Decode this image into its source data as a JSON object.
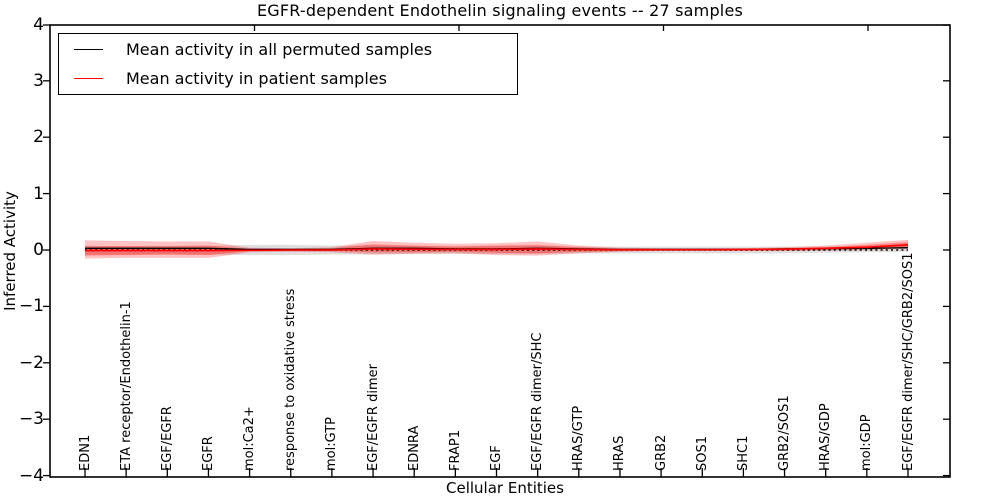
{
  "chart_data": {
    "type": "line",
    "title": "EGFR-dependent Endothelin signaling events -- 27 samples",
    "xlabel": "Cellular Entities",
    "ylabel": "Inferred Activity",
    "ylim": [
      -4,
      4
    ],
    "yticks": [
      4,
      3,
      2,
      1,
      0,
      -1,
      -2,
      -3,
      -4
    ],
    "grid": false,
    "legend_position": "upper-left",
    "categories": [
      "EDN1",
      "ETA receptor/Endothelin-1",
      "EGF/EGFR",
      "EGFR",
      "mol:Ca2+",
      "response to oxidative stress",
      "mol:GTP",
      "EGF/EGFR dimer",
      "EDNRA",
      "FRAP1",
      "EGF",
      "EGF/EGFR dimer/SHC",
      "HRAS/GTP",
      "HRAS",
      "GRB2",
      "SOS1",
      "SHC1",
      "GRB2/SOS1",
      "HRAS/GDP",
      "mol:GDP",
      "EGF/EGFR dimer/SHC/GRB2/SOS1"
    ],
    "series": [
      {
        "name": "Mean activity in all permuted samples",
        "color": "#000000",
        "values": [
          0.03,
          0.03,
          0.03,
          0.03,
          0.01,
          0.01,
          0.01,
          0.03,
          0.03,
          0.02,
          0.02,
          0.03,
          0.02,
          0.01,
          0.01,
          0.01,
          0.01,
          0.02,
          0.025,
          0.03,
          0.04
        ]
      },
      {
        "name": "Mean activity in patient samples",
        "color": "#ff0000",
        "values": [
          -0.01,
          -0.01,
          -0.01,
          -0.01,
          -0.005,
          0,
          0,
          0.02,
          0.015,
          0.01,
          0.01,
          0.02,
          0.01,
          0.005,
          0.005,
          0.005,
          0.01,
          0.015,
          0.03,
          0.05,
          0.09
        ]
      }
    ],
    "zero_line": {
      "value": 0,
      "style": "dotted",
      "color": "#000000"
    },
    "bands": [
      {
        "name": "permuted samples range",
        "color": "#808080",
        "opacity": 0.25,
        "top": [
          0.07,
          0.07,
          0.07,
          0.07,
          0.09,
          0.09,
          0.08,
          0.08,
          0.07,
          0.07,
          0.07,
          0.07,
          0.06,
          0.06,
          0.06,
          0.06,
          0.06,
          0.06,
          0.06,
          0.07,
          0.08
        ],
        "bottom": [
          -0.08,
          -0.08,
          -0.08,
          -0.08,
          -0.09,
          -0.09,
          -0.08,
          -0.08,
          -0.07,
          -0.07,
          -0.07,
          -0.07,
          -0.06,
          -0.06,
          -0.06,
          -0.06,
          -0.06,
          -0.06,
          -0.05,
          -0.04,
          -0.03
        ]
      },
      {
        "name": "patient samples range outer",
        "color": "#ff0000",
        "opacity": 0.24,
        "top": [
          0.17,
          0.16,
          0.15,
          0.15,
          0.04,
          0.03,
          0.05,
          0.16,
          0.13,
          0.11,
          0.12,
          0.15,
          0.08,
          0.04,
          0.03,
          0.03,
          0.03,
          0.05,
          0.08,
          0.13,
          0.18
        ],
        "bottom": [
          -0.15,
          -0.14,
          -0.14,
          -0.14,
          -0.04,
          -0.03,
          -0.04,
          -0.08,
          -0.07,
          -0.06,
          -0.09,
          -0.1,
          -0.06,
          -0.03,
          -0.02,
          -0.02,
          -0.02,
          -0.02,
          -0.01,
          0.0,
          0.02
        ]
      },
      {
        "name": "patient samples range inner",
        "color": "#ff0000",
        "opacity": 0.32,
        "top": [
          0.07,
          0.07,
          0.07,
          0.08,
          0.02,
          0.02,
          0.03,
          0.1,
          0.08,
          0.06,
          0.08,
          0.09,
          0.05,
          0.02,
          0.02,
          0.02,
          0.02,
          0.03,
          0.05,
          0.09,
          0.14
        ],
        "bottom": [
          -0.1,
          -0.09,
          -0.08,
          -0.09,
          -0.02,
          -0.02,
          -0.02,
          -0.04,
          -0.04,
          -0.03,
          -0.05,
          -0.06,
          -0.03,
          -0.02,
          -0.01,
          -0.01,
          -0.01,
          -0.01,
          0.0,
          0.01,
          0.04
        ]
      }
    ]
  }
}
